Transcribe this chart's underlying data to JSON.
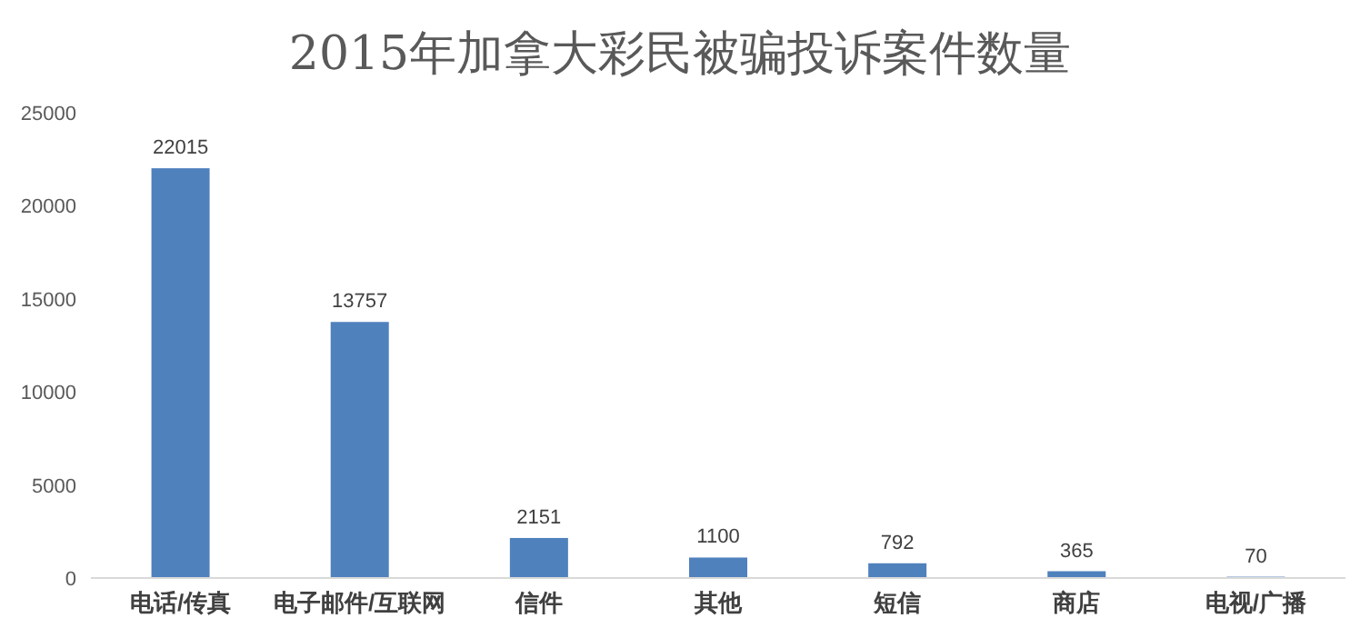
{
  "chart_data": {
    "type": "bar",
    "title": "2015年加拿大彩民被骗投诉案件数量",
    "categories": [
      "电话/传真",
      "电子邮件/互联网",
      "信件",
      "其他",
      "短信",
      "商店",
      "电视/广播"
    ],
    "values": [
      22015,
      13757,
      2151,
      1100,
      792,
      365,
      70
    ],
    "color": "#4f81bd",
    "ylim": [
      0,
      25000
    ],
    "yticks": [
      0,
      5000,
      10000,
      15000,
      20000,
      25000
    ],
    "grid": false,
    "data_labels": true
  }
}
